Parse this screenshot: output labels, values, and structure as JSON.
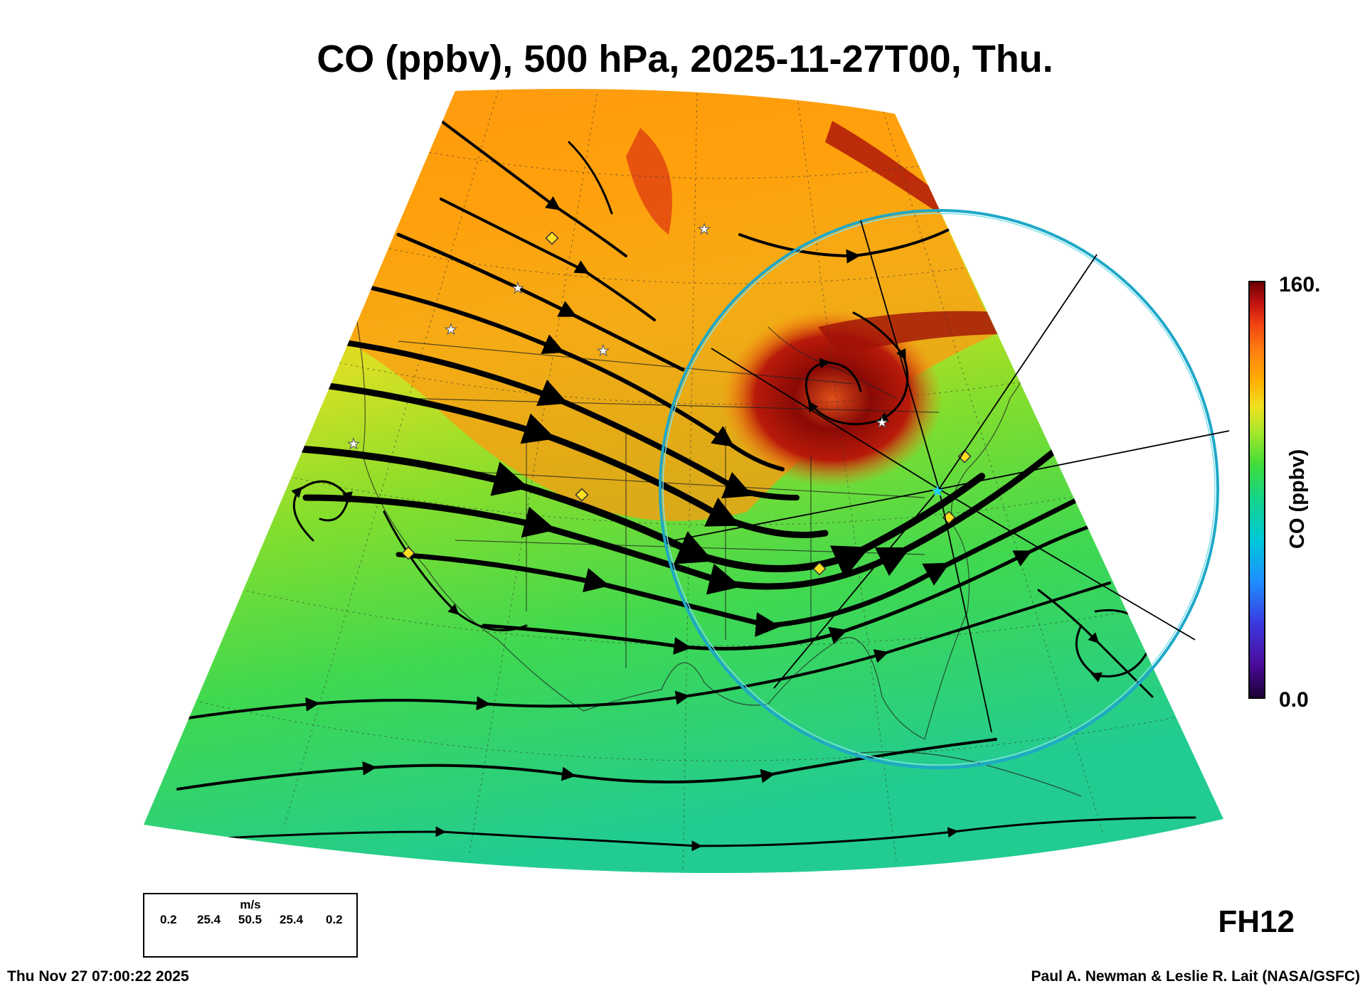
{
  "title": "CO (ppbv), 500 hPa, 2025-11-27T00, Thu.",
  "colorbar": {
    "label": "CO (ppbv)",
    "max_label": "160.",
    "min_label": "0.0",
    "colors": [
      "#1a0033",
      "#4b0a9a",
      "#3a3ae0",
      "#1f8fff",
      "#00c8d8",
      "#15d488",
      "#3fdc3a",
      "#a8e82a",
      "#f0e020",
      "#ffb000",
      "#ff7a10",
      "#f04010",
      "#c01010",
      "#6a0000"
    ]
  },
  "forecast_hour": "FH12",
  "wind_legend": {
    "unit": "m/s",
    "values": [
      "0.2",
      "25.4",
      "50.5",
      "25.4",
      "0.2"
    ]
  },
  "footer": {
    "timestamp": "Thu Nov 27 07:00:22 2025",
    "credit": "Paul A. Newman & Leslie R. Lait (NASA/GSFC)"
  },
  "map": {
    "range_ring_color": "#22b8d0",
    "station_marker_color": "#ffe020",
    "star_marker_color": "#ffffff"
  }
}
